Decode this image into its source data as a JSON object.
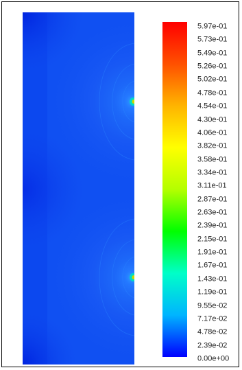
{
  "scalar_range": [
    0.0,
    0.597
  ],
  "colorbar": {
    "colors": [
      "#0000ff",
      "#00b4ff",
      "#00ffc8",
      "#00ff00",
      "#b4ff00",
      "#ffff00",
      "#ffb400",
      "#ff5000",
      "#ff0000"
    ],
    "labels": [
      "5.97e-01",
      "5.73e-01",
      "5.49e-01",
      "5.26e-01",
      "5.02e-01",
      "4.78e-01",
      "4.54e-01",
      "4.30e-01",
      "4.06e-01",
      "3.82e-01",
      "3.58e-01",
      "3.34e-01",
      "3.11e-01",
      "2.87e-01",
      "2.63e-01",
      "2.39e-01",
      "2.15e-01",
      "1.91e-01",
      "1.67e-01",
      "1.43e-01",
      "1.19e-01",
      "9.55e-02",
      "7.17e-02",
      "4.78e-02",
      "2.39e-02",
      "0.00e+00"
    ]
  },
  "plot": {
    "base_color": "#1050f2",
    "hotspot_color": "#c8d800"
  }
}
